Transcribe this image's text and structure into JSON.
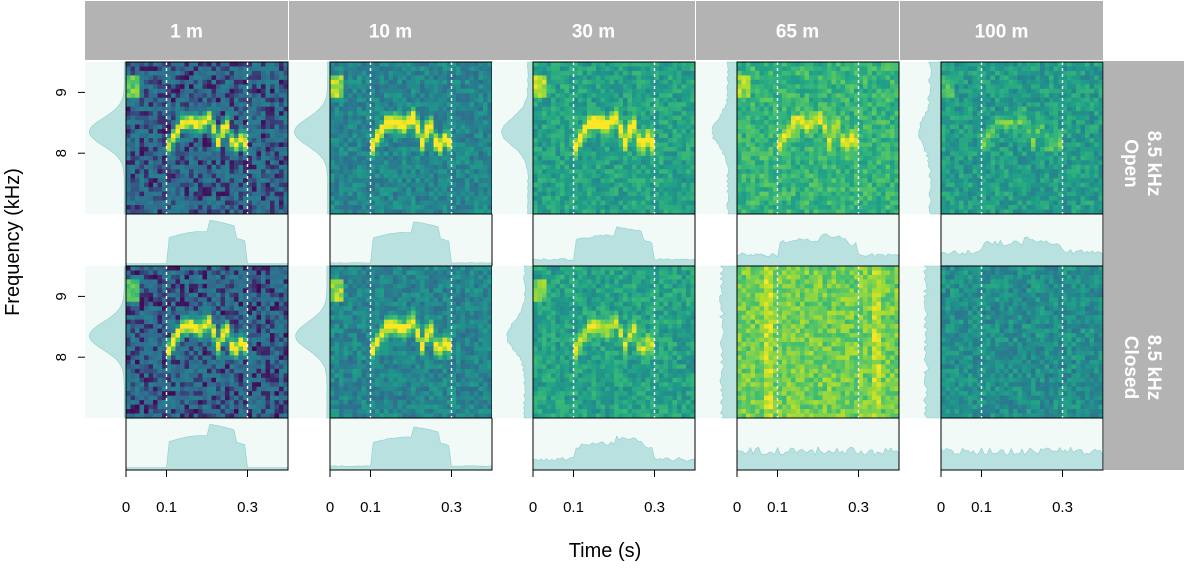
{
  "chart_data": {
    "type": "heatmap",
    "title": "",
    "xlabel": "Time (s)",
    "ylabel": "Frequency (kHz)",
    "x_ticks": [
      "0",
      "0.1",
      "0.3"
    ],
    "x_tick_values": [
      0,
      0.1,
      0.3
    ],
    "xlim": [
      0,
      0.4
    ],
    "y_ticks": [
      "9",
      "8"
    ],
    "y_tick_values": [
      9,
      8
    ],
    "ylim": [
      7.0,
      9.5
    ],
    "reference_lines_s": [
      0.1,
      0.3
    ],
    "columns": [
      "1 m",
      "10 m",
      "30 m",
      "65 m",
      "100 m"
    ],
    "rows": [
      "8.5 kHz Open",
      "8.5 kHz Closed"
    ],
    "row_label_lines": [
      [
        "8.5 kHz",
        "Open"
      ],
      [
        "8.5 kHz",
        "Closed"
      ]
    ],
    "signal_trace": {
      "time_s": [
        0.1,
        0.12,
        0.14,
        0.16,
        0.18,
        0.2,
        0.21,
        0.22,
        0.23,
        0.24,
        0.25,
        0.26,
        0.27,
        0.28,
        0.29,
        0.3
      ],
      "freq_khz": [
        8.05,
        8.3,
        8.5,
        8.52,
        8.45,
        8.55,
        8.6,
        8.3,
        8.15,
        8.4,
        8.45,
        8.2,
        8.1,
        8.25,
        8.2,
        8.15
      ]
    },
    "signal_strength": [
      [
        1.0,
        0.95,
        0.75,
        0.45,
        0.3
      ],
      [
        1.0,
        0.9,
        0.5,
        0.0,
        0.0
      ]
    ],
    "background_level": [
      [
        0.15,
        0.3,
        0.45,
        0.55,
        0.42
      ],
      [
        0.15,
        0.3,
        0.45,
        0.72,
        0.35
      ]
    ],
    "colors": {
      "strip_fill": "#b3b3b3",
      "marginal_fill": "#b9e1df",
      "marginal_stroke": "#8fcfcc",
      "panel_border": "#000000",
      "reference_line": "#ffffff",
      "colormap": [
        "#440154",
        "#31688e",
        "#26828e",
        "#1f9e89",
        "#35b779",
        "#6ece58",
        "#b5de2b",
        "#fde725"
      ]
    }
  }
}
